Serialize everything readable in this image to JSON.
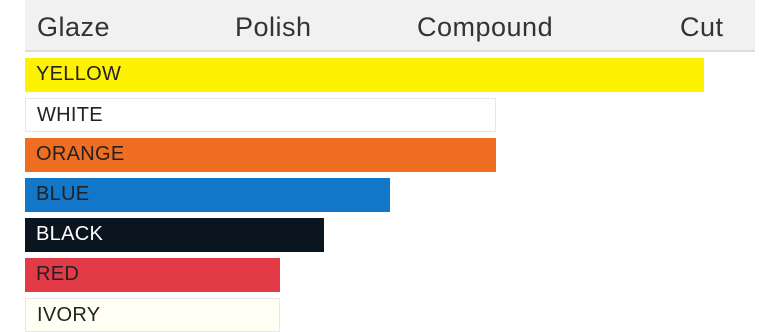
{
  "chart_data": {
    "type": "bar",
    "orientation": "horizontal",
    "axis_labels": [
      "Glaze",
      "Polish",
      "Compound",
      "Cut"
    ],
    "xlim": [
      0,
      1
    ],
    "grid": false,
    "bars": [
      {
        "label": "YELLOW",
        "value": 0.93,
        "color": "#fff200",
        "text_color": "#222222"
      },
      {
        "label": "WHITE",
        "value": 0.645,
        "color": "#ffffff",
        "text_color": "#222222"
      },
      {
        "label": "ORANGE",
        "value": 0.645,
        "color": "#ef6e22",
        "text_color": "#222222"
      },
      {
        "label": "BLUE",
        "value": 0.5,
        "color": "#1277c9",
        "text_color": "#222222"
      },
      {
        "label": "BLACK",
        "value": 0.41,
        "color": "#0b1520",
        "text_color": "#ffffff"
      },
      {
        "label": "RED",
        "value": 0.35,
        "color": "#e23a47",
        "text_color": "#222222"
      },
      {
        "label": "IVORY",
        "value": 0.35,
        "color": "#fffff4",
        "text_color": "#222222"
      }
    ]
  }
}
